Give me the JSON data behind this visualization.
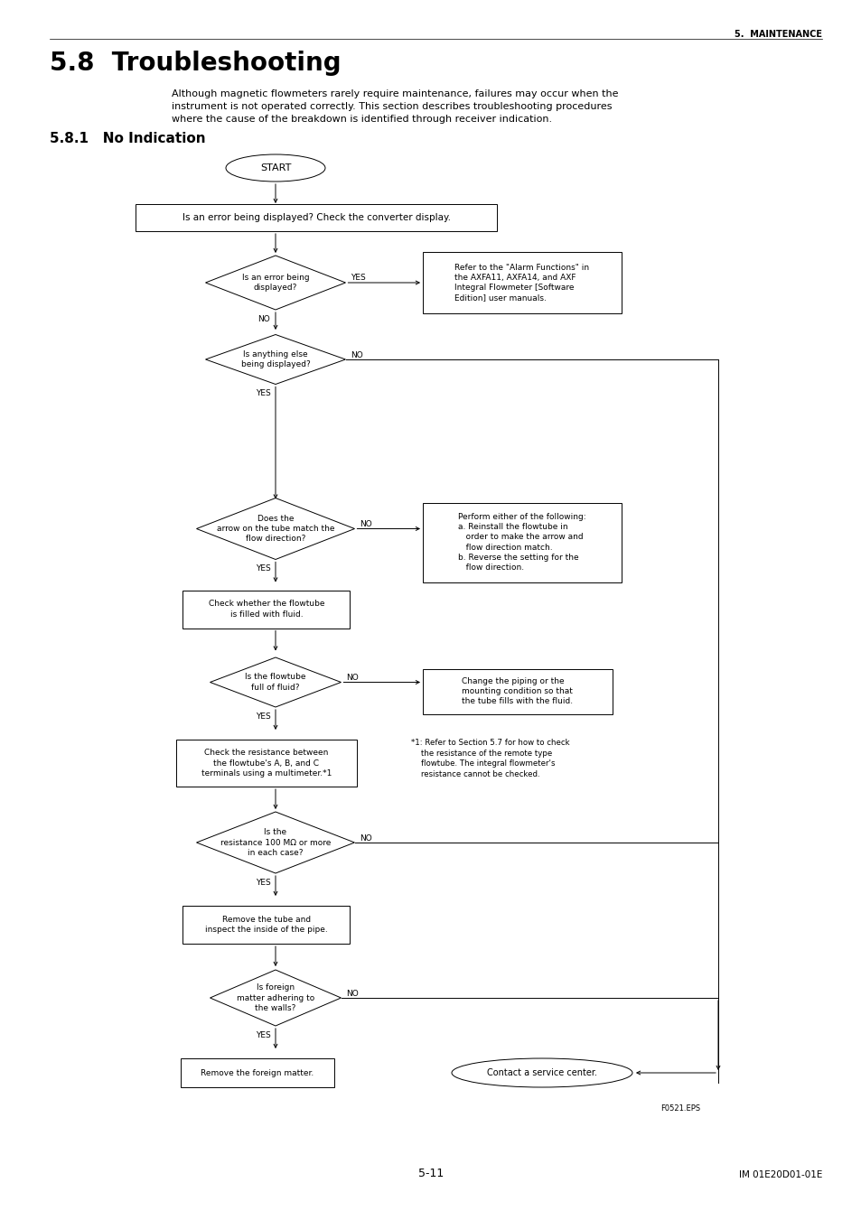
{
  "page_title": "5.8  Troubleshooting",
  "section_header": "5.  MAINTENANCE",
  "subsection": "5.8.1   No Indication",
  "intro_text": "Although magnetic flowmeters rarely require maintenance, failures may occur when the\ninstrument is not operated correctly. This section describes troubleshooting procedures\nwhere the cause of the breakdown is identified through receiver indication.",
  "footer_left": "5-11",
  "footer_right": "IM 01E20D01-01E",
  "fig_label": "F0521.EPS",
  "bg_color": "#ffffff"
}
